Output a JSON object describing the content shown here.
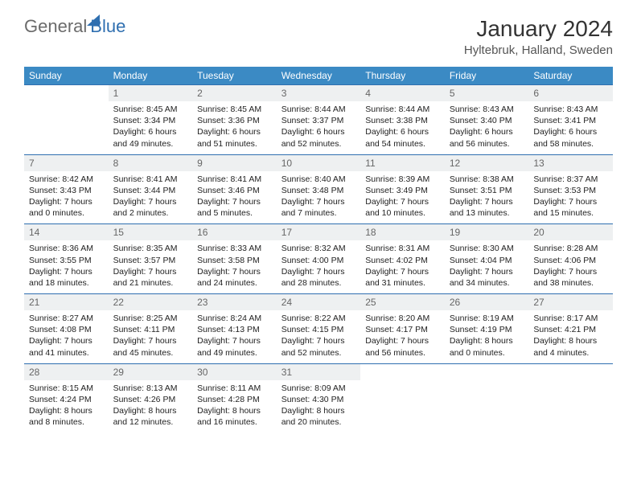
{
  "logo": {
    "text1": "General",
    "text2": "Blue"
  },
  "title": "January 2024",
  "location": "Hyltebruk, Halland, Sweden",
  "colors": {
    "header_bg": "#3b8ac4",
    "border": "#2f6fb0",
    "daynum_bg": "#eef0f1",
    "logo_gray": "#6b6b6b",
    "logo_blue": "#2f6fb0"
  },
  "weekdays": [
    "Sunday",
    "Monday",
    "Tuesday",
    "Wednesday",
    "Thursday",
    "Friday",
    "Saturday"
  ],
  "weeks": [
    {
      "nums": [
        "",
        "1",
        "2",
        "3",
        "4",
        "5",
        "6"
      ],
      "cells": [
        null,
        {
          "sunrise": "8:45 AM",
          "sunset": "3:34 PM",
          "daylight": "6 hours and 49 minutes."
        },
        {
          "sunrise": "8:45 AM",
          "sunset": "3:36 PM",
          "daylight": "6 hours and 51 minutes."
        },
        {
          "sunrise": "8:44 AM",
          "sunset": "3:37 PM",
          "daylight": "6 hours and 52 minutes."
        },
        {
          "sunrise": "8:44 AM",
          "sunset": "3:38 PM",
          "daylight": "6 hours and 54 minutes."
        },
        {
          "sunrise": "8:43 AM",
          "sunset": "3:40 PM",
          "daylight": "6 hours and 56 minutes."
        },
        {
          "sunrise": "8:43 AM",
          "sunset": "3:41 PM",
          "daylight": "6 hours and 58 minutes."
        }
      ]
    },
    {
      "nums": [
        "7",
        "8",
        "9",
        "10",
        "11",
        "12",
        "13"
      ],
      "cells": [
        {
          "sunrise": "8:42 AM",
          "sunset": "3:43 PM",
          "daylight": "7 hours and 0 minutes."
        },
        {
          "sunrise": "8:41 AM",
          "sunset": "3:44 PM",
          "daylight": "7 hours and 2 minutes."
        },
        {
          "sunrise": "8:41 AM",
          "sunset": "3:46 PM",
          "daylight": "7 hours and 5 minutes."
        },
        {
          "sunrise": "8:40 AM",
          "sunset": "3:48 PM",
          "daylight": "7 hours and 7 minutes."
        },
        {
          "sunrise": "8:39 AM",
          "sunset": "3:49 PM",
          "daylight": "7 hours and 10 minutes."
        },
        {
          "sunrise": "8:38 AM",
          "sunset": "3:51 PM",
          "daylight": "7 hours and 13 minutes."
        },
        {
          "sunrise": "8:37 AM",
          "sunset": "3:53 PM",
          "daylight": "7 hours and 15 minutes."
        }
      ]
    },
    {
      "nums": [
        "14",
        "15",
        "16",
        "17",
        "18",
        "19",
        "20"
      ],
      "cells": [
        {
          "sunrise": "8:36 AM",
          "sunset": "3:55 PM",
          "daylight": "7 hours and 18 minutes."
        },
        {
          "sunrise": "8:35 AM",
          "sunset": "3:57 PM",
          "daylight": "7 hours and 21 minutes."
        },
        {
          "sunrise": "8:33 AM",
          "sunset": "3:58 PM",
          "daylight": "7 hours and 24 minutes."
        },
        {
          "sunrise": "8:32 AM",
          "sunset": "4:00 PM",
          "daylight": "7 hours and 28 minutes."
        },
        {
          "sunrise": "8:31 AM",
          "sunset": "4:02 PM",
          "daylight": "7 hours and 31 minutes."
        },
        {
          "sunrise": "8:30 AM",
          "sunset": "4:04 PM",
          "daylight": "7 hours and 34 minutes."
        },
        {
          "sunrise": "8:28 AM",
          "sunset": "4:06 PM",
          "daylight": "7 hours and 38 minutes."
        }
      ]
    },
    {
      "nums": [
        "21",
        "22",
        "23",
        "24",
        "25",
        "26",
        "27"
      ],
      "cells": [
        {
          "sunrise": "8:27 AM",
          "sunset": "4:08 PM",
          "daylight": "7 hours and 41 minutes."
        },
        {
          "sunrise": "8:25 AM",
          "sunset": "4:11 PM",
          "daylight": "7 hours and 45 minutes."
        },
        {
          "sunrise": "8:24 AM",
          "sunset": "4:13 PM",
          "daylight": "7 hours and 49 minutes."
        },
        {
          "sunrise": "8:22 AM",
          "sunset": "4:15 PM",
          "daylight": "7 hours and 52 minutes."
        },
        {
          "sunrise": "8:20 AM",
          "sunset": "4:17 PM",
          "daylight": "7 hours and 56 minutes."
        },
        {
          "sunrise": "8:19 AM",
          "sunset": "4:19 PM",
          "daylight": "8 hours and 0 minutes."
        },
        {
          "sunrise": "8:17 AM",
          "sunset": "4:21 PM",
          "daylight": "8 hours and 4 minutes."
        }
      ]
    },
    {
      "nums": [
        "28",
        "29",
        "30",
        "31",
        "",
        "",
        ""
      ],
      "cells": [
        {
          "sunrise": "8:15 AM",
          "sunset": "4:24 PM",
          "daylight": "8 hours and 8 minutes."
        },
        {
          "sunrise": "8:13 AM",
          "sunset": "4:26 PM",
          "daylight": "8 hours and 12 minutes."
        },
        {
          "sunrise": "8:11 AM",
          "sunset": "4:28 PM",
          "daylight": "8 hours and 16 minutes."
        },
        {
          "sunrise": "8:09 AM",
          "sunset": "4:30 PM",
          "daylight": "8 hours and 20 minutes."
        },
        null,
        null,
        null
      ]
    }
  ],
  "labels": {
    "sunrise": "Sunrise:",
    "sunset": "Sunset:",
    "daylight": "Daylight:"
  }
}
